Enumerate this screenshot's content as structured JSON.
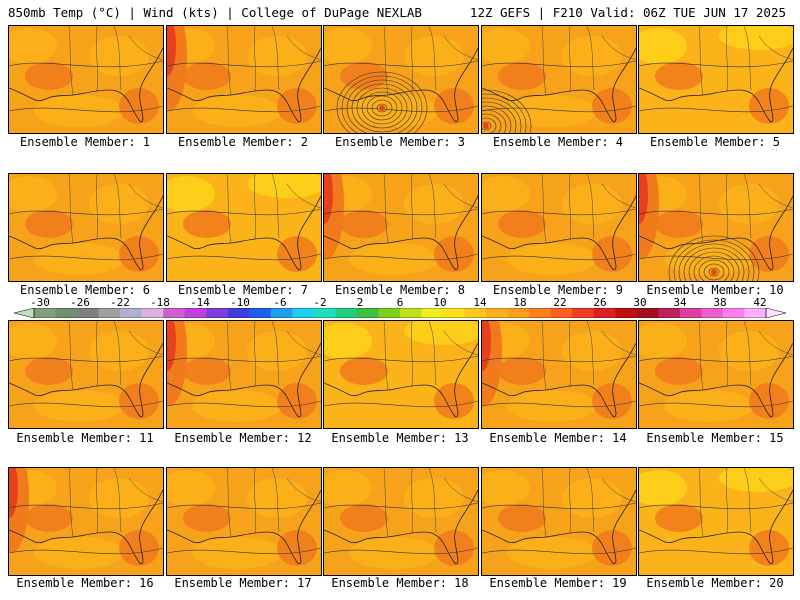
{
  "header": {
    "left": "850mb Temp (°C) | Wind (kts) | College of DuPage NEXLAB",
    "right": "12Z GEFS | F210 Valid: 06Z TUE JUN 17 2025"
  },
  "members": [
    {
      "label": "Ensemble Member: 1",
      "tone": "mid",
      "low": null
    },
    {
      "label": "Ensemble Member: 2",
      "tone": "warmwest",
      "low": null
    },
    {
      "label": "Ensemble Member: 3",
      "tone": "mid",
      "low": "center"
    },
    {
      "label": "Ensemble Member: 4",
      "tone": "mid",
      "low": "left"
    },
    {
      "label": "Ensemble Member: 5",
      "tone": "cool",
      "low": null
    },
    {
      "label": "Ensemble Member: 6",
      "tone": "mid",
      "low": null
    },
    {
      "label": "Ensemble Member: 7",
      "tone": "cool",
      "low": null
    },
    {
      "label": "Ensemble Member: 8",
      "tone": "warmwest",
      "low": null
    },
    {
      "label": "Ensemble Member: 9",
      "tone": "mid",
      "low": null
    },
    {
      "label": "Ensemble Member: 10",
      "tone": "warmwest",
      "low": "south"
    },
    {
      "label": "Ensemble Member: 11",
      "tone": "mid",
      "low": null
    },
    {
      "label": "Ensemble Member: 12",
      "tone": "warmwest",
      "low": null
    },
    {
      "label": "Ensemble Member: 13",
      "tone": "cool",
      "low": null
    },
    {
      "label": "Ensemble Member: 14",
      "tone": "warmwest",
      "low": null
    },
    {
      "label": "Ensemble Member: 15",
      "tone": "mid",
      "low": null
    },
    {
      "label": "Ensemble Member: 16",
      "tone": "warmwest",
      "low": null
    },
    {
      "label": "Ensemble Member: 17",
      "tone": "mid",
      "low": null
    },
    {
      "label": "Ensemble Member: 18",
      "tone": "mid",
      "low": null
    },
    {
      "label": "Ensemble Member: 19",
      "tone": "mid",
      "low": null
    },
    {
      "label": "Ensemble Member: 20",
      "tone": "cool",
      "low": null
    }
  ],
  "colorbar": {
    "labels": [
      "-30",
      "-26",
      "-22",
      "-18",
      "-14",
      "-10",
      "-6",
      "-2",
      "2",
      "6",
      "10",
      "14",
      "18",
      "22",
      "26",
      "30",
      "34",
      "38",
      "42"
    ],
    "colors": [
      "#7f9f7f",
      "#6f8f6f",
      "#7f7f7f",
      "#9f9f9f",
      "#afafcf",
      "#dfafdf",
      "#cf5fcf",
      "#bf3fdf",
      "#7f3fdf",
      "#3f3fdf",
      "#1f5fef",
      "#1f9fef",
      "#1fcfef",
      "#1fdfbf",
      "#1fcf7f",
      "#3fbf3f",
      "#7fcf1f",
      "#bfdf1f",
      "#efef1f",
      "#ffe01f",
      "#ffc81f",
      "#ffb01f",
      "#ff9f1f",
      "#ff7f1f",
      "#ff5f1f",
      "#ef3f1f",
      "#df1f1f",
      "#bf0f0f",
      "#9f0f1f",
      "#bf1f5f",
      "#df3f9f",
      "#ef5fcf",
      "#ff7fef",
      "#ffafff"
    ],
    "bg_mid": "#f7a21b",
    "bg_cool": "#fbb31a",
    "bg_warm": "#f07a1c",
    "bg_hot": "#e8401a",
    "bg_yellow": "#fcd21a"
  }
}
